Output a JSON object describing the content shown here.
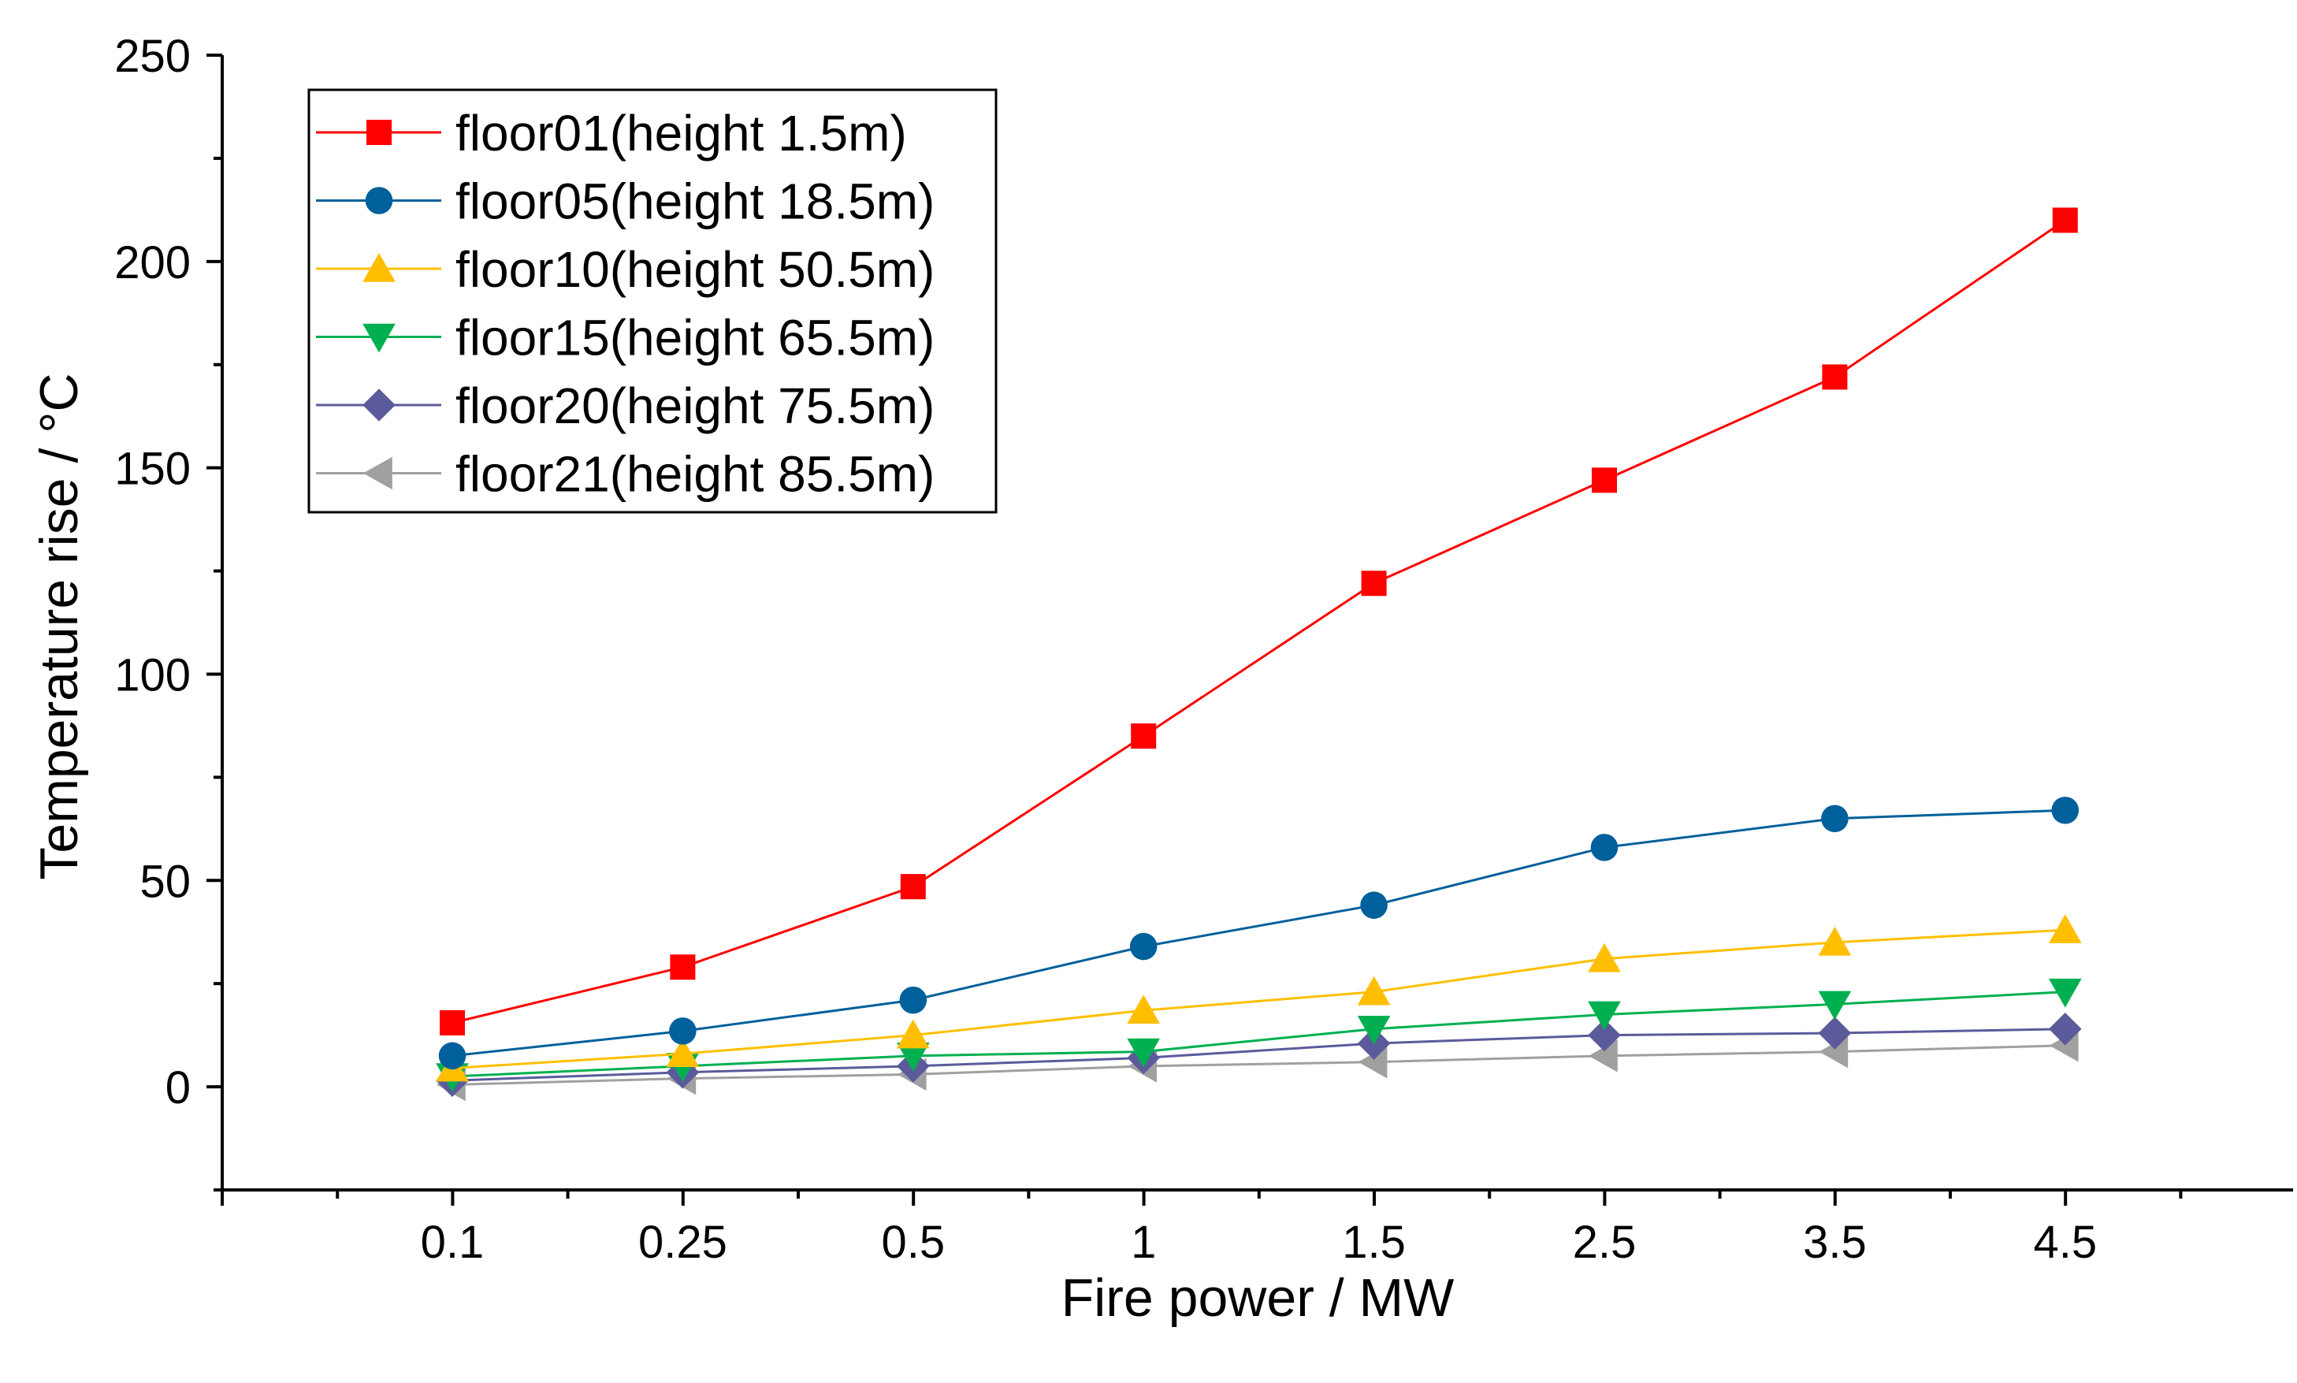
{
  "chart_data": {
    "type": "line",
    "title": "",
    "xlabel": "Fire power / MW",
    "ylabel": "Temperature rise / °C",
    "categories": [
      "0.1",
      "0.25",
      "0.5",
      "1",
      "1.5",
      "2.5",
      "3.5",
      "4.5"
    ],
    "ylim": [
      -25,
      250
    ],
    "yticks": [
      0,
      50,
      100,
      150,
      200,
      250
    ],
    "ytick_labels": [
      "0",
      "50",
      "100",
      "150",
      "200",
      "250"
    ],
    "grid": false,
    "legend_position": "top-left",
    "series": [
      {
        "name": "floor01(height 1.5m)",
        "color": "#ff0000",
        "marker": "square",
        "values": [
          15.5,
          29,
          48.5,
          85,
          122,
          147,
          172,
          210
        ]
      },
      {
        "name": "floor05(height 18.5m)",
        "color": "#00609b",
        "marker": "circle",
        "values": [
          7.5,
          13.5,
          21,
          34,
          44,
          58,
          65,
          67
        ]
      },
      {
        "name": "floor10(height 50.5m)",
        "color": "#ffbf00",
        "marker": "triangle-up",
        "values": [
          4.5,
          8,
          12.5,
          18.5,
          23,
          31,
          35,
          38
        ]
      },
      {
        "name": "floor15(height 65.5m)",
        "color": "#00b050",
        "marker": "triangle-down",
        "values": [
          2.5,
          5,
          7.5,
          8.5,
          14,
          17.5,
          20,
          23
        ]
      },
      {
        "name": "floor20(height 75.5m)",
        "color": "#5b5b9c",
        "marker": "diamond",
        "values": [
          1.5,
          3.5,
          5,
          7,
          10.5,
          12.5,
          13,
          14
        ]
      },
      {
        "name": "floor21(height 85.5m)",
        "color": "#a0a0a0",
        "marker": "triangle-left",
        "values": [
          0.5,
          2,
          3,
          5,
          6,
          7.5,
          8.5,
          10
        ]
      }
    ]
  }
}
